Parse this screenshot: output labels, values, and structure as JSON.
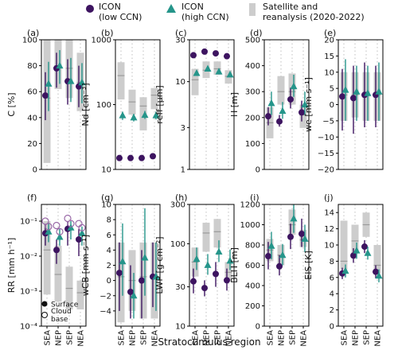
{
  "figure": {
    "xlabel": "Stratocumulus region",
    "legend": {
      "position": "top",
      "entries": [
        {
          "label_line1": "ICON",
          "label_line2": "(low CCN)",
          "marker": "circle",
          "color": "#3d1460"
        },
        {
          "label_line1": "ICON",
          "label_line2": "(high CCN)",
          "marker": "triangle",
          "color": "#25958a"
        },
        {
          "label_line1": "Satellite and",
          "label_line2": "reanalysis (2020-2022)",
          "marker": "bar",
          "color": "#c8c8c8"
        }
      ]
    },
    "colors": {
      "low": "#3d1460",
      "high": "#25958a",
      "obs": "#cdcdcd",
      "open_marker": "#9a6aa8"
    }
  },
  "chart_data": [
    {
      "type": "scatter",
      "panel_label": "(a)",
      "ylabel": "C [%]",
      "scale": "linear",
      "ylim": [
        0,
        100
      ],
      "ticks": [
        0,
        20,
        40,
        60,
        80,
        100
      ],
      "tick_labels": [
        "0",
        "20",
        "40",
        "60",
        "80",
        "100"
      ],
      "categories": [
        "SEA",
        "NEP",
        "SEP",
        "NEA"
      ],
      "series": [
        {
          "key": "low",
          "values": [
            57,
            78,
            68,
            64
          ],
          "err": [
            [
              38,
              75
            ],
            [
              63,
              90
            ],
            [
              50,
              85
            ],
            [
              48,
              80
            ]
          ]
        },
        {
          "key": "high",
          "values": [
            66,
            80,
            68,
            67
          ],
          "err": [
            [
              45,
              83
            ],
            [
              66,
              92
            ],
            [
              52,
              86
            ],
            [
              51,
              82
            ]
          ]
        },
        {
          "key": "obs",
          "values": [
            55,
            80,
            78,
            67
          ],
          "range": [
            [
              5,
              100
            ],
            [
              62,
              100
            ],
            [
              55,
              100
            ],
            [
              45,
              90
            ]
          ]
        }
      ]
    },
    {
      "type": "scatter",
      "panel_label": "(b)",
      "ylabel": "Nd [cm⁻³]",
      "scale": "log",
      "ylim": [
        10,
        1000
      ],
      "ticks": [
        10,
        100,
        1000
      ],
      "tick_labels": [
        "10",
        "100",
        "1000"
      ],
      "categories": [
        "SEA",
        "NEP",
        "SEP",
        "NEA"
      ],
      "series": [
        {
          "key": "low",
          "values": [
            15,
            15,
            15,
            16
          ]
        },
        {
          "key": "high",
          "values": [
            68,
            63,
            69,
            68
          ],
          "err": [
            [
              58,
              78
            ],
            [
              55,
              72
            ],
            [
              60,
              80
            ],
            [
              59,
              78
            ]
          ]
        },
        {
          "key": "obs",
          "values": [
            280,
            110,
            95,
            140
          ],
          "range": [
            [
              120,
              450
            ],
            [
              70,
              170
            ],
            [
              40,
              130
            ],
            [
              85,
              180
            ]
          ]
        }
      ]
    },
    {
      "type": "scatter",
      "panel_label": "(c)",
      "ylabel": "reff [μm]",
      "scale": "log",
      "ylim": [
        1,
        30
      ],
      "ticks": [
        1,
        3,
        10,
        30
      ],
      "tick_labels": [
        "1",
        "3",
        "10",
        "30"
      ],
      "categories": [
        "SEA",
        "NEP",
        "SEP",
        "NEA"
      ],
      "series": [
        {
          "key": "low",
          "values": [
            20,
            22,
            21,
            19.5
          ]
        },
        {
          "key": "high",
          "values": [
            12.5,
            14,
            13,
            12
          ]
        },
        {
          "key": "obs",
          "values": [
            10.5,
            13.5,
            14,
            11.5
          ],
          "range": [
            [
              7,
              14
            ],
            [
              11,
              17
            ],
            [
              12,
              17
            ],
            [
              9.5,
              13.5
            ]
          ]
        }
      ]
    },
    {
      "type": "scatter",
      "panel_label": "(d)",
      "ylabel": "H [m]",
      "scale": "linear",
      "ylim": [
        0,
        500
      ],
      "ticks": [
        0,
        100,
        200,
        300,
        400,
        500
      ],
      "tick_labels": [
        "0",
        "100",
        "200",
        "300",
        "400",
        "500"
      ],
      "categories": [
        "SEA",
        "NEP",
        "SEP",
        "NEA"
      ],
      "series": [
        {
          "key": "low",
          "values": [
            205,
            185,
            270,
            220
          ],
          "err": [
            [
              170,
              240
            ],
            [
              165,
              210
            ],
            [
              235,
              315
            ],
            [
              185,
              265
            ]
          ]
        },
        {
          "key": "high",
          "values": [
            255,
            225,
            320,
            250
          ],
          "err": [
            [
              210,
              300
            ],
            [
              195,
              260
            ],
            [
              280,
              365
            ],
            [
              210,
              300
            ]
          ]
        },
        {
          "key": "obs",
          "values": [
            180,
            300,
            300,
            210
          ],
          "range": [
            [
              120,
              240
            ],
            [
              250,
              360
            ],
            [
              250,
              370
            ],
            [
              160,
              250
            ]
          ]
        }
      ]
    },
    {
      "type": "scatter",
      "panel_label": "(e)",
      "ylabel": "we [mm s⁻¹]",
      "scale": "linear",
      "ylim": [
        -20,
        20
      ],
      "ticks": [
        -20,
        -15,
        -10,
        -5,
        0,
        5,
        10,
        15,
        20
      ],
      "tick_labels": [
        "−20",
        "−15",
        "−10",
        "−5",
        "0",
        "5",
        "10",
        "15",
        "20"
      ],
      "categories": [
        "SEA",
        "NEP",
        "SEP",
        "NEA"
      ],
      "series": [
        {
          "key": "low",
          "values": [
            2.5,
            2,
            3,
            3
          ],
          "err": [
            [
              -8,
              11
            ],
            [
              -9,
              12
            ],
            [
              -7,
              13
            ],
            [
              -7,
              12
            ]
          ]
        },
        {
          "key": "high",
          "values": [
            4.5,
            4,
            3.5,
            4
          ],
          "err": [
            [
              -5,
              14
            ],
            [
              -5,
              12
            ],
            [
              -5,
              12
            ],
            [
              -5,
              13
            ]
          ]
        },
        {
          "key": "obs",
          "values": [
            3,
            3,
            3,
            3
          ],
          "range": [
            [
              -5,
              10
            ],
            [
              -4,
              10
            ],
            [
              -5,
              10
            ],
            [
              -5,
              10
            ]
          ]
        }
      ]
    },
    {
      "type": "scatter",
      "panel_label": "(f)",
      "ylabel": "RR [mm h⁻¹]",
      "scale": "log",
      "ylim": [
        0.0001,
        0.3
      ],
      "ticks": [
        0.0001,
        0.001,
        0.01,
        0.1
      ],
      "tick_labels": [
        "10⁻⁴",
        "10⁻³",
        "10⁻²",
        "10⁻¹"
      ],
      "categories": [
        "SEA",
        "NEP",
        "SEP",
        "NEA"
      ],
      "annotation_legend": [
        {
          "marker": "filled-circle",
          "label": "Surface"
        },
        {
          "marker": "open-circle",
          "label_line1": "Cloud",
          "label_line2": "base"
        }
      ],
      "series": [
        {
          "key": "low",
          "values": [
            0.045,
            0.015,
            0.06,
            0.03
          ],
          "err": [
            [
              0.02,
              0.08
            ],
            [
              0.006,
              0.03
            ],
            [
              0.02,
              0.1
            ],
            [
              0.01,
              0.06
            ]
          ]
        },
        {
          "key": "high",
          "values": [
            0.05,
            0.035,
            0.065,
            0.045
          ],
          "err": [
            [
              0.025,
              0.09
            ],
            [
              0.02,
              0.06
            ],
            [
              0.03,
              0.1
            ],
            [
              0.02,
              0.07
            ]
          ]
        },
        {
          "key": "low_cloud_base",
          "values": [
            0.1,
            0.075,
            0.12,
            0.085
          ]
        },
        {
          "key": "high_cloud_base",
          "values": [
            0.07,
            0.05,
            0.085,
            0.065
          ]
        },
        {
          "key": "obs",
          "values": [
            0.015,
            0.003,
            0.0012,
            0.0009
          ],
          "range": [
            [
              0.0008,
              0.1
            ],
            [
              0.0005,
              0.02
            ],
            [
              0.0003,
              0.005
            ],
            [
              0.0003,
              0.002
            ]
          ]
        }
      ]
    },
    {
      "type": "scatter",
      "panel_label": "(g)",
      "ylabel": "wCB [mm s⁻¹]",
      "scale": "linear",
      "ylim": [
        -6,
        10
      ],
      "ticks": [
        -4,
        -2,
        0,
        2,
        4,
        6,
        8,
        10
      ],
      "tick_labels": [
        "−4",
        "−2",
        "0",
        "2",
        "4",
        "6",
        "8",
        "10"
      ],
      "categories": [
        "SEA",
        "NEP",
        "SEP",
        "NEA"
      ],
      "series": [
        {
          "key": "low",
          "values": [
            1,
            -1.5,
            0,
            0.5
          ],
          "err": [
            [
              -4,
              5
            ],
            [
              -5,
              2
            ],
            [
              -5,
              4
            ],
            [
              -3.5,
              5
            ]
          ]
        },
        {
          "key": "high",
          "values": [
            2.5,
            -2,
            3,
            0.5
          ],
          "err": [
            [
              -2,
              7.5
            ],
            [
              -5,
              1
            ],
            [
              -2,
              9.5
            ],
            [
              -4,
              5
            ]
          ]
        },
        {
          "key": "obs",
          "values": [
            0.5,
            0,
            0.5,
            0.5
          ],
          "range": [
            [
              -5.5,
              5
            ],
            [
              -4,
              4
            ],
            [
              -5,
              5
            ],
            [
              -5,
              5
            ]
          ]
        }
      ]
    },
    {
      "type": "scatter",
      "panel_label": "(h)",
      "ylabel": "LWP [g cm⁻²]",
      "scale": "log",
      "ylim": [
        10,
        300
      ],
      "ticks": [
        10,
        30,
        100,
        300
      ],
      "tick_labels": [
        "10",
        "30",
        "100",
        "300"
      ],
      "categories": [
        "SEA",
        "NEP",
        "SEP",
        "NEA"
      ],
      "series": [
        {
          "key": "low",
          "values": [
            35,
            29,
            43,
            36
          ],
          "err": [
            [
              25,
              50
            ],
            [
              23,
              36
            ],
            [
              30,
              60
            ],
            [
              27,
              50
            ]
          ]
        },
        {
          "key": "high",
          "values": [
            65,
            55,
            80,
            62
          ],
          "err": [
            [
              48,
              90
            ],
            [
              42,
              75
            ],
            [
              60,
              110
            ],
            [
              48,
              85
            ]
          ]
        },
        {
          "key": "obs",
          "values": [
            60,
            135,
            140,
            45
          ],
          "range": [
            [
              40,
              90
            ],
            [
              80,
              180
            ],
            [
              90,
              200
            ],
            [
              35,
              60
            ]
          ]
        }
      ]
    },
    {
      "type": "scatter",
      "panel_label": "(i)",
      "ylabel": "BLH [m]",
      "scale": "linear",
      "ylim": [
        0,
        1200
      ],
      "ticks": [
        0,
        200,
        400,
        600,
        800,
        1000,
        1200
      ],
      "tick_labels": [
        "0",
        "200",
        "400",
        "600",
        "800",
        "1000",
        "1200"
      ],
      "categories": [
        "SEA",
        "NEP",
        "SEP",
        "NEA"
      ],
      "series": [
        {
          "key": "low",
          "values": [
            690,
            590,
            880,
            910
          ],
          "err": [
            [
              560,
              830
            ],
            [
              500,
              700
            ],
            [
              760,
              1010
            ],
            [
              780,
              1060
            ]
          ]
        },
        {
          "key": "high",
          "values": [
            790,
            700,
            1060,
            860
          ],
          "err": [
            [
              660,
              930
            ],
            [
              600,
              810
            ],
            [
              920,
              1200
            ],
            [
              730,
              1000
            ]
          ]
        },
        {
          "key": "obs",
          "values": [
            750,
            700,
            1000,
            850
          ],
          "range": [
            [
              640,
              860
            ],
            [
              600,
              800
            ],
            [
              900,
              1150
            ],
            [
              780,
              950
            ]
          ]
        }
      ]
    },
    {
      "type": "scatter",
      "panel_label": "(j)",
      "ylabel": "EIS [K]",
      "scale": "linear",
      "ylim": [
        0,
        15
      ],
      "ticks": [
        0,
        2,
        4,
        6,
        8,
        10,
        12,
        14
      ],
      "tick_labels": [
        "0",
        "2",
        "4",
        "6",
        "8",
        "10",
        "12",
        "14"
      ],
      "categories": [
        "SEA",
        "NEP",
        "SEP",
        "NEA"
      ],
      "series": [
        {
          "key": "low",
          "values": [
            6.5,
            8.7,
            9.8,
            6.7
          ],
          "err": [
            [
              5.8,
              7.2
            ],
            [
              7.8,
              9.6
            ],
            [
              9,
              10.6
            ],
            [
              5.9,
              7.5
            ]
          ]
        },
        {
          "key": "high",
          "values": [
            6.8,
            9.3,
            9,
            6.2
          ],
          "err": [
            [
              6,
              7.6
            ],
            [
              8.3,
              10.3
            ],
            [
              8.2,
              9.8
            ],
            [
              5.4,
              7
            ]
          ]
        },
        {
          "key": "obs",
          "values": [
            8,
            10.5,
            12.5,
            7.5
          ],
          "range": [
            [
              7,
              13
            ],
            [
              9,
              12.5
            ],
            [
              11,
              14
            ],
            [
              6.5,
              10
            ]
          ]
        }
      ]
    }
  ]
}
